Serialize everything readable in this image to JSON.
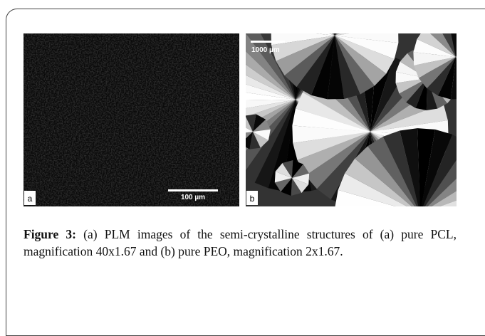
{
  "figure": {
    "label": "Figure 3:",
    "caption": "(a) PLM images of the semi-crystalline structures of (a) pure PCL, magnification 40x1.67 and (b) pure PEO, magnification 2x1.67.",
    "panels": [
      {
        "label": "a",
        "scale": "100 µm"
      },
      {
        "label": "b",
        "scale": "1000 µm"
      }
    ]
  }
}
